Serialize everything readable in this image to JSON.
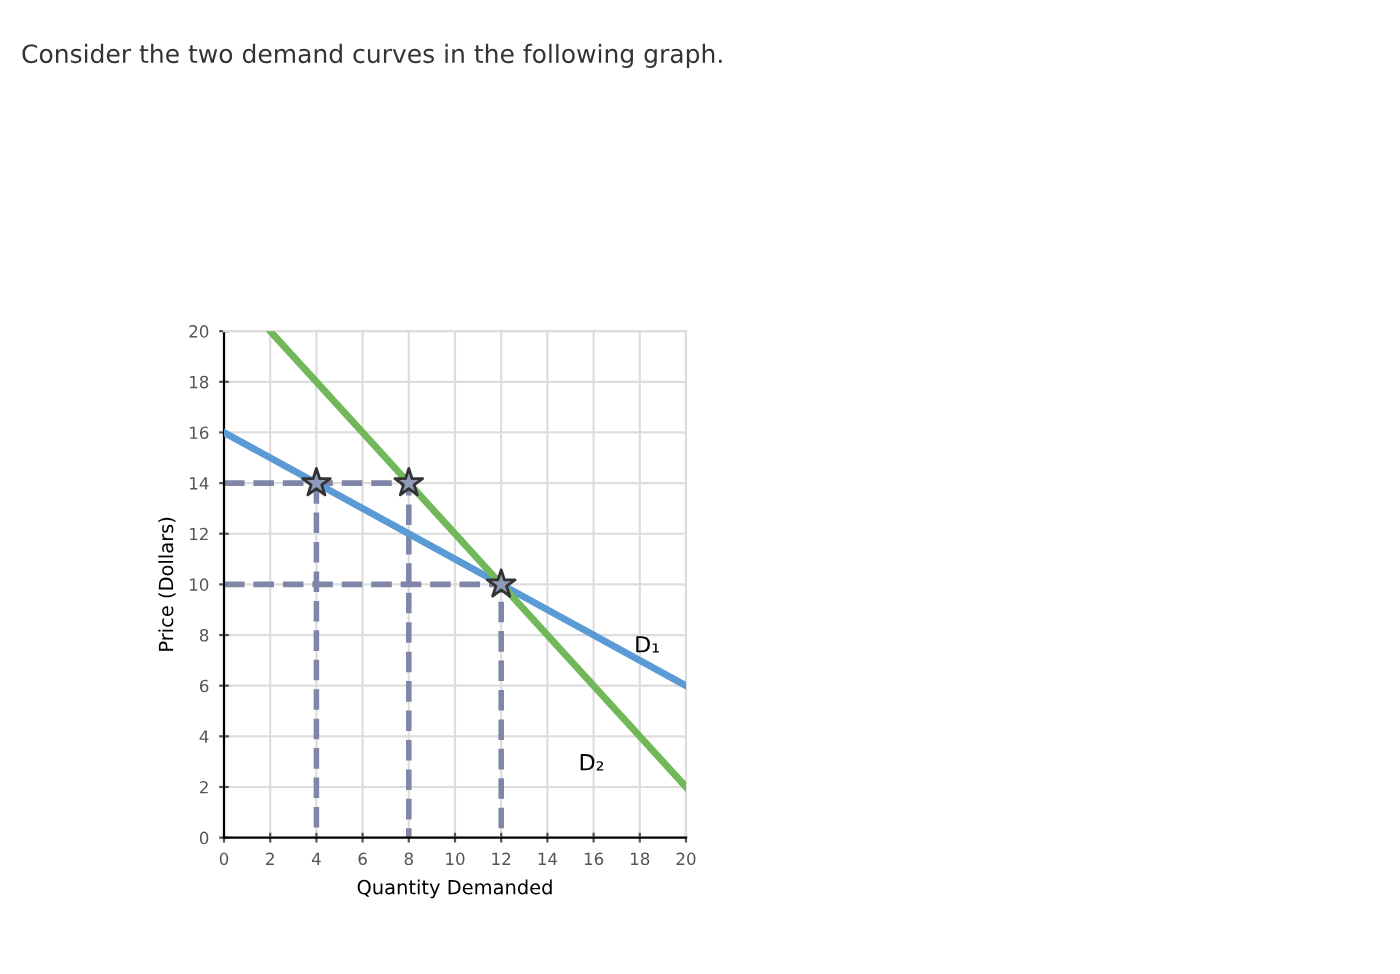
{
  "chart_data": {
    "type": "line",
    "title": "Consider the two demand curves in the following graph.",
    "xlabel": "Quantity Demanded",
    "ylabel": "Price (Dollars)",
    "xlim": [
      0,
      20
    ],
    "ylim": [
      0,
      20
    ],
    "xticks": [
      0,
      2,
      4,
      6,
      8,
      10,
      12,
      14,
      16,
      18,
      20
    ],
    "yticks": [
      0,
      2,
      4,
      6,
      8,
      10,
      12,
      14,
      16,
      18,
      20
    ],
    "grid": true,
    "legend": false,
    "series": [
      {
        "name": "D₁",
        "color": "#5b9bd5",
        "x": [
          0,
          20
        ],
        "values": [
          16,
          6
        ]
      },
      {
        "name": "D₂",
        "color": "#70b85a",
        "x": [
          2,
          20
        ],
        "values": [
          20,
          2
        ]
      },
      {
        "color": "#7f86a8",
        "line_style": "dashed",
        "x": [
          0,
          8,
          8
        ],
        "values": [
          14,
          14,
          0
        ]
      },
      {
        "color": "#7f86a8",
        "line_style": "dashed",
        "x": [
          4,
          4
        ],
        "values": [
          14,
          0
        ]
      },
      {
        "color": "#7f86a8",
        "line_style": "dashed",
        "x": [
          0,
          12,
          12
        ],
        "values": [
          10,
          10,
          0
        ]
      },
      {
        "type": "scatter",
        "marker": "star",
        "color": "#8f9ab8",
        "x": [
          4,
          8,
          12
        ],
        "values": [
          14,
          14,
          10
        ]
      }
    ]
  }
}
